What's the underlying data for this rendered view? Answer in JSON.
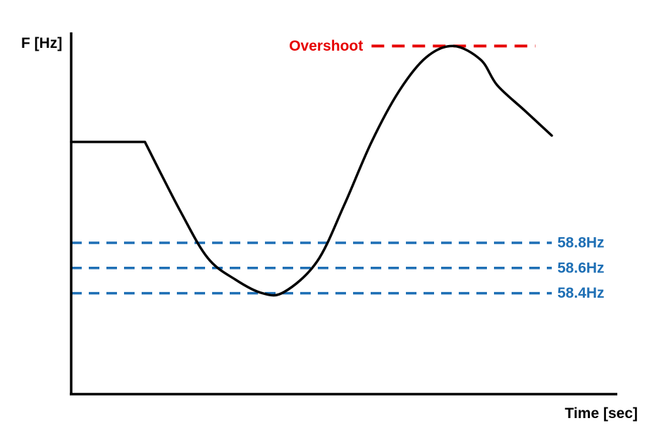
{
  "chart_data": {
    "type": "line",
    "title": "",
    "xlabel": "Time [sec]",
    "ylabel": "F [Hz]",
    "xlim": [
      0,
      10
    ],
    "ylim": [
      57.6,
      60.4
    ],
    "grid": false,
    "series": [
      {
        "color": "#000000",
        "x": [
          0,
          1.35,
          2,
          2.5,
          3,
          3.5,
          3.9,
          4.5,
          5,
          5.5,
          6,
          6.5,
          7,
          7.5,
          7.8,
          8.3,
          8.8
        ],
        "y": [
          59.6,
          59.6,
          59.05,
          58.68,
          58.51,
          58.4,
          58.41,
          58.65,
          59.1,
          59.6,
          60.0,
          60.27,
          60.36,
          60.25,
          60.05,
          59.85,
          59.65
        ]
      }
    ],
    "reference_lines": [
      {
        "label": "Overshoot",
        "y": 60.36,
        "x_start": 5.5,
        "x_end": 8.5,
        "color": "#e60000"
      },
      {
        "label": "58.8Hz",
        "y": 58.8,
        "x_start": 0,
        "x_end": 8.8,
        "color": "#1e6fb5"
      },
      {
        "label": "58.6Hz",
        "y": 58.6,
        "x_start": 0,
        "x_end": 8.8,
        "color": "#1e6fb5"
      },
      {
        "label": "58.4Hz",
        "y": 58.4,
        "x_start": 0,
        "x_end": 8.8,
        "color": "#1e6fb5"
      }
    ]
  }
}
